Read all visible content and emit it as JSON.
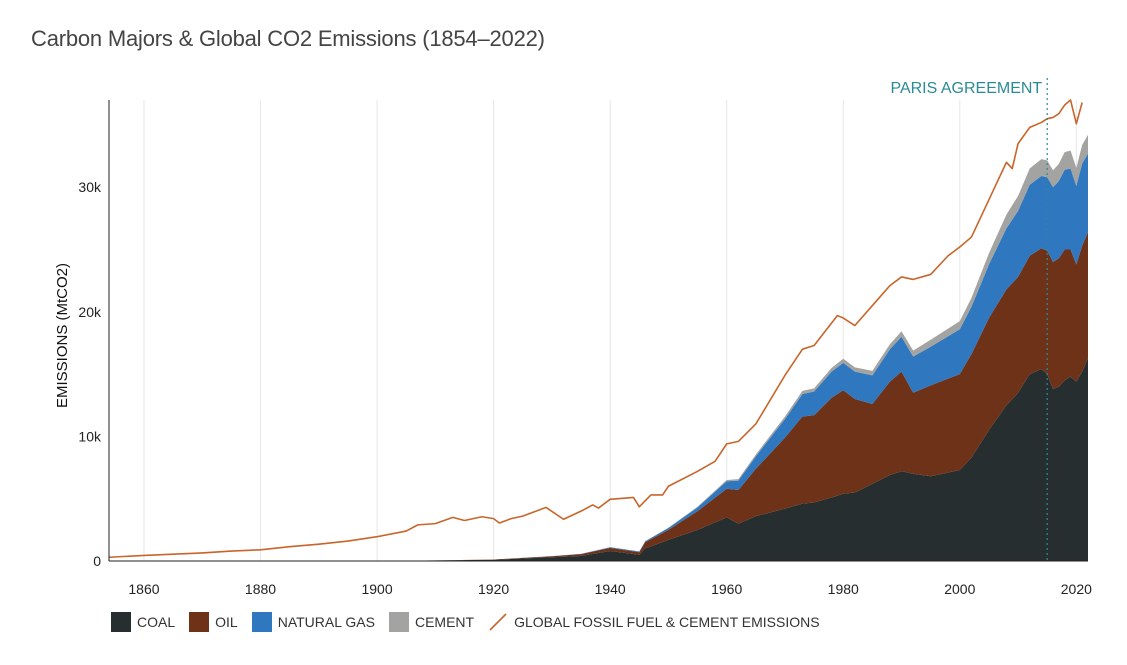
{
  "chart_data": {
    "type": "area",
    "title": "Carbon Majors & Global CO2 Emissions (1854–2022)",
    "ylabel": "EMISSIONS (MtCO2)",
    "xlabel": "",
    "xlim": [
      1854,
      2022
    ],
    "ylim": [
      0,
      37000
    ],
    "x_ticks": [
      1860,
      1880,
      1900,
      1920,
      1940,
      1960,
      1980,
      2000,
      2020
    ],
    "y_ticks": [
      {
        "value": 0,
        "label": "0"
      },
      {
        "value": 10000,
        "label": "10k"
      },
      {
        "value": 20000,
        "label": "20k"
      },
      {
        "value": 30000,
        "label": "30k"
      }
    ],
    "grid": "vertical",
    "stacked": true,
    "x": [
      1854,
      1860,
      1870,
      1880,
      1890,
      1900,
      1910,
      1920,
      1930,
      1935,
      1940,
      1945,
      1946,
      1950,
      1955,
      1960,
      1962,
      1965,
      1970,
      1973,
      1975,
      1978,
      1980,
      1982,
      1985,
      1988,
      1990,
      1992,
      1995,
      2000,
      2002,
      2005,
      2008,
      2010,
      2012,
      2014,
      2015,
      2016,
      2017,
      2018,
      2019,
      2020,
      2021,
      2022
    ],
    "series": [
      {
        "name": "COAL",
        "color": "#262e2f",
        "values": [
          0,
          0,
          0,
          0,
          0,
          0,
          50,
          100,
          300,
          400,
          800,
          500,
          1000,
          1700,
          2500,
          3500,
          3000,
          3600,
          4200,
          4600,
          4700,
          5100,
          5400,
          5500,
          6200,
          6900,
          7200,
          7000,
          6800,
          7300,
          8300,
          10500,
          12500,
          13500,
          15000,
          15400,
          15000,
          13800,
          14000,
          14500,
          14800,
          14400,
          15200,
          16300
        ]
      },
      {
        "name": "OIL",
        "color": "#6e3219",
        "values": [
          0,
          0,
          0,
          0,
          0,
          0,
          0,
          20,
          80,
          150,
          250,
          200,
          500,
          800,
          1500,
          2300,
          2700,
          3800,
          5700,
          7000,
          7000,
          8000,
          8300,
          7500,
          6400,
          7500,
          8000,
          6500,
          7300,
          7700,
          8300,
          9000,
          9300,
          9300,
          9500,
          9700,
          9900,
          10200,
          10300,
          10500,
          10200,
          9400,
          10100,
          10100
        ]
      },
      {
        "name": "NATURAL GAS",
        "color": "#2f77be",
        "values": [
          0,
          0,
          0,
          0,
          0,
          0,
          0,
          0,
          10,
          20,
          50,
          60,
          80,
          150,
          300,
          600,
          750,
          1000,
          1500,
          1800,
          1900,
          2100,
          2200,
          2200,
          2300,
          2600,
          2800,
          2900,
          3100,
          3600,
          3800,
          4300,
          4900,
          5300,
          5700,
          5800,
          5900,
          6000,
          6200,
          6400,
          6500,
          6300,
          6600,
          6300
        ]
      },
      {
        "name": "CEMENT",
        "color": "#a3a3a1",
        "values": [
          0,
          0,
          0,
          0,
          0,
          0,
          0,
          0,
          5,
          8,
          15,
          10,
          15,
          30,
          60,
          100,
          120,
          150,
          200,
          250,
          250,
          300,
          330,
          340,
          360,
          400,
          440,
          480,
          560,
          650,
          720,
          900,
          1100,
          1200,
          1300,
          1350,
          1350,
          1350,
          1380,
          1420,
          1450,
          1450,
          1500,
          1500
        ]
      }
    ],
    "line_series": {
      "name": "GLOBAL FOSSIL FUEL & CEMENT EMISSIONS",
      "color": "#c9652a",
      "x": [
        1854,
        1860,
        1870,
        1875,
        1880,
        1885,
        1890,
        1895,
        1900,
        1905,
        1907,
        1910,
        1913,
        1915,
        1918,
        1920,
        1921,
        1923,
        1925,
        1927,
        1929,
        1932,
        1935,
        1937,
        1938,
        1940,
        1944,
        1945,
        1947,
        1949,
        1950,
        1955,
        1958,
        1960,
        1962,
        1965,
        1970,
        1973,
        1975,
        1979,
        1980,
        1982,
        1985,
        1988,
        1990,
        1992,
        1995,
        1998,
        2000,
        2002,
        2005,
        2008,
        2009,
        2010,
        2012,
        2014,
        2015,
        2016,
        2017,
        2018,
        2019,
        2020,
        2021
      ],
      "values": [
        300,
        450,
        650,
        800,
        900,
        1150,
        1350,
        1600,
        1950,
        2400,
        2900,
        3000,
        3500,
        3250,
        3550,
        3400,
        3050,
        3400,
        3600,
        3950,
        4300,
        3350,
        4000,
        4500,
        4250,
        4950,
        5100,
        4350,
        5300,
        5300,
        6000,
        7200,
        8000,
        9400,
        9600,
        11000,
        14900,
        17000,
        17300,
        19700,
        19500,
        18900,
        20500,
        22100,
        22800,
        22600,
        23000,
        24500,
        25200,
        26000,
        29000,
        32000,
        31500,
        33500,
        34800,
        35200,
        35500,
        35600,
        35900,
        36600,
        37000,
        35100,
        36800
      ]
    },
    "annotations": [
      {
        "label": "PARIS AGREEMENT",
        "x": 2015,
        "color": "#2a8a96"
      }
    ],
    "legend": {
      "position": "bottom-left"
    }
  }
}
